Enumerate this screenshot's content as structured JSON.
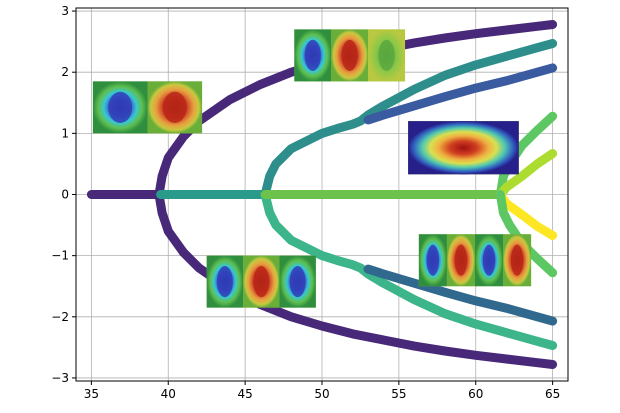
{
  "chart_data": {
    "type": "scatter",
    "title": "",
    "xlabel": "",
    "ylabel": "",
    "xlim": [
      34,
      66
    ],
    "ylim": [
      -3.05,
      3.05
    ],
    "grid": true,
    "x_ticks": [
      "35",
      "40",
      "45",
      "50",
      "55",
      "60",
      "65"
    ],
    "y_ticks": [
      "−3",
      "−2",
      "−1",
      "0",
      "1",
      "2",
      "3"
    ],
    "x_tick_values": [
      35,
      40,
      45,
      50,
      55,
      60,
      65
    ],
    "y_tick_values": [
      -3,
      -2,
      -1,
      0,
      1,
      2,
      3
    ],
    "series": [
      {
        "color": "#482878",
        "points": [
          [
            35,
            0
          ],
          [
            36,
            0
          ],
          [
            37,
            0
          ],
          [
            38,
            0
          ],
          [
            39,
            0
          ],
          [
            39.4,
            0
          ]
        ]
      },
      {
        "color": "#482878",
        "points": [
          [
            39.4,
            0
          ],
          [
            39.6,
            0.3
          ],
          [
            40,
            0.6
          ],
          [
            41,
            0.95
          ],
          [
            42,
            1.2
          ],
          [
            44,
            1.55
          ],
          [
            46,
            1.8
          ],
          [
            48,
            2.0
          ],
          [
            50,
            2.15
          ],
          [
            52,
            2.28
          ],
          [
            54,
            2.38
          ],
          [
            56,
            2.48
          ],
          [
            58,
            2.56
          ],
          [
            60,
            2.63
          ],
          [
            62,
            2.69
          ],
          [
            64,
            2.75
          ],
          [
            65,
            2.78
          ]
        ]
      },
      {
        "color": "#482878",
        "points": [
          [
            39.4,
            0
          ],
          [
            39.6,
            -0.3
          ],
          [
            40,
            -0.6
          ],
          [
            41,
            -0.95
          ],
          [
            42,
            -1.2
          ],
          [
            44,
            -1.55
          ],
          [
            46,
            -1.8
          ],
          [
            48,
            -2.0
          ],
          [
            50,
            -2.15
          ],
          [
            52,
            -2.28
          ],
          [
            54,
            -2.38
          ],
          [
            56,
            -2.48
          ],
          [
            58,
            -2.56
          ],
          [
            60,
            -2.63
          ],
          [
            62,
            -2.69
          ],
          [
            64,
            -2.75
          ],
          [
            65,
            -2.78
          ]
        ]
      },
      {
        "color": "#2a9b8a",
        "points": [
          [
            39.5,
            0
          ],
          [
            41,
            0
          ],
          [
            43,
            0
          ],
          [
            45,
            0
          ],
          [
            46.3,
            0
          ]
        ]
      },
      {
        "color": "#2e8e8c",
        "points": [
          [
            46.3,
            0
          ],
          [
            46.6,
            0.3
          ],
          [
            47,
            0.5
          ],
          [
            48,
            0.75
          ],
          [
            50,
            1.0
          ],
          [
            51,
            1.08
          ],
          [
            52,
            1.15
          ],
          [
            52.5,
            1.2
          ],
          [
            53,
            1.3
          ],
          [
            54,
            1.45
          ],
          [
            56,
            1.72
          ],
          [
            58,
            1.95
          ],
          [
            60,
            2.12
          ],
          [
            62,
            2.26
          ],
          [
            64,
            2.4
          ],
          [
            65,
            2.47
          ]
        ]
      },
      {
        "color": "#3a5ba0",
        "points": [
          [
            53,
            1.22
          ],
          [
            54,
            1.3
          ],
          [
            56,
            1.45
          ],
          [
            58,
            1.6
          ],
          [
            60,
            1.74
          ],
          [
            62,
            1.86
          ],
          [
            64,
            2.0
          ],
          [
            65,
            2.07
          ]
        ]
      },
      {
        "color": "#3cb58a",
        "points": [
          [
            46.3,
            0
          ],
          [
            46.6,
            -0.3
          ],
          [
            47,
            -0.5
          ],
          [
            48,
            -0.75
          ],
          [
            50,
            -1.0
          ],
          [
            51,
            -1.08
          ],
          [
            52,
            -1.15
          ],
          [
            52.5,
            -1.2
          ],
          [
            53,
            -1.3
          ],
          [
            54,
            -1.45
          ],
          [
            56,
            -1.72
          ],
          [
            58,
            -1.95
          ],
          [
            60,
            -2.12
          ],
          [
            62,
            -2.26
          ],
          [
            64,
            -2.4
          ],
          [
            65,
            -2.47
          ]
        ]
      },
      {
        "color": "#31688e",
        "points": [
          [
            53,
            -1.22
          ],
          [
            54,
            -1.3
          ],
          [
            56,
            -1.45
          ],
          [
            58,
            -1.6
          ],
          [
            60,
            -1.74
          ],
          [
            62,
            -1.86
          ],
          [
            64,
            -2.0
          ],
          [
            65,
            -2.07
          ]
        ]
      },
      {
        "color": "#6cc24a",
        "points": [
          [
            46.3,
            0
          ],
          [
            48,
            0
          ],
          [
            50,
            0
          ],
          [
            52,
            0
          ],
          [
            54,
            0
          ],
          [
            56,
            0
          ],
          [
            58,
            0
          ],
          [
            60,
            0
          ],
          [
            61.6,
            0
          ]
        ]
      },
      {
        "color": "#5dc863",
        "points": [
          [
            61.6,
            0
          ],
          [
            61.8,
            0.3
          ],
          [
            62.2,
            0.5
          ],
          [
            63,
            0.8
          ],
          [
            64,
            1.05
          ],
          [
            65,
            1.28
          ]
        ]
      },
      {
        "color": "#addc30",
        "points": [
          [
            61.6,
            0
          ],
          [
            62,
            0.12
          ],
          [
            63,
            0.3
          ],
          [
            64,
            0.5
          ],
          [
            65,
            0.67
          ]
        ]
      },
      {
        "color": "#fde725",
        "points": [
          [
            61.6,
            0
          ],
          [
            62,
            -0.15
          ],
          [
            63,
            -0.33
          ],
          [
            64,
            -0.52
          ],
          [
            65,
            -0.67
          ]
        ]
      },
      {
        "color": "#5dc863",
        "points": [
          [
            61.6,
            0
          ],
          [
            61.8,
            -0.3
          ],
          [
            62.2,
            -0.5
          ],
          [
            63,
            -0.8
          ],
          [
            64,
            -1.05
          ],
          [
            65,
            -1.28
          ]
        ]
      }
    ],
    "insets": [
      {
        "name": "two-mode",
        "x0": 35.1,
        "x1": 42.2,
        "y0": 1.0,
        "y1": 1.85,
        "pattern": [
          "blue",
          "red"
        ]
      },
      {
        "name": "two-mode-upper",
        "x0": 48.2,
        "x1": 55.4,
        "y0": 1.85,
        "y1": 2.7,
        "pattern": [
          "blue",
          "red",
          "green"
        ]
      },
      {
        "name": "three-mode",
        "x0": 42.5,
        "x1": 49.6,
        "y0": -1.85,
        "y1": -1.0,
        "pattern": [
          "blue",
          "red",
          "blue"
        ]
      },
      {
        "name": "single-mode",
        "x0": 55.6,
        "x1": 62.8,
        "y0": 0.33,
        "y1": 1.2,
        "pattern": [
          "red-large"
        ]
      },
      {
        "name": "four-mode",
        "x0": 56.3,
        "x1": 63.6,
        "y0": -1.5,
        "y1": -0.65,
        "pattern": [
          "blue",
          "red",
          "blue",
          "red"
        ]
      }
    ]
  }
}
